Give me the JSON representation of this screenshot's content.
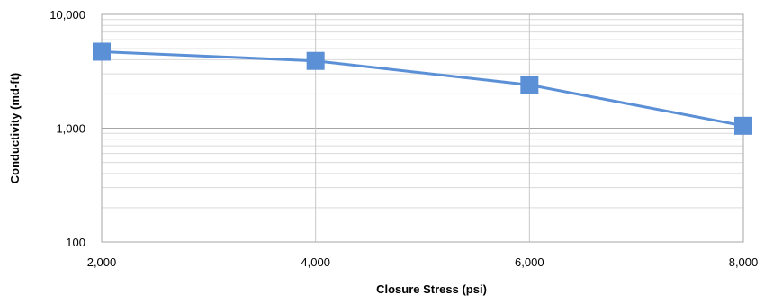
{
  "chart_data": {
    "type": "line",
    "xlabel": "Closure Stress (psi)",
    "ylabel": "Conductivity (md-ft)",
    "x_scale": "linear",
    "y_scale": "log",
    "xlim": [
      2000,
      8000
    ],
    "ylim": [
      100,
      10000
    ],
    "x_ticks": [
      2000,
      4000,
      6000,
      8000
    ],
    "x_tick_labels": [
      "2,000",
      "4,000",
      "6,000",
      "8,000"
    ],
    "y_ticks": [
      100,
      1000,
      10000
    ],
    "y_tick_labels": [
      "100",
      "1,000",
      "10,000"
    ],
    "grid": true,
    "legend": "none",
    "series": [
      {
        "x": [
          2000,
          4000,
          6000,
          8000
        ],
        "values": [
          4700,
          3900,
          2400,
          1050
        ],
        "marker": "square",
        "color": "#5b8fd6"
      }
    ]
  }
}
